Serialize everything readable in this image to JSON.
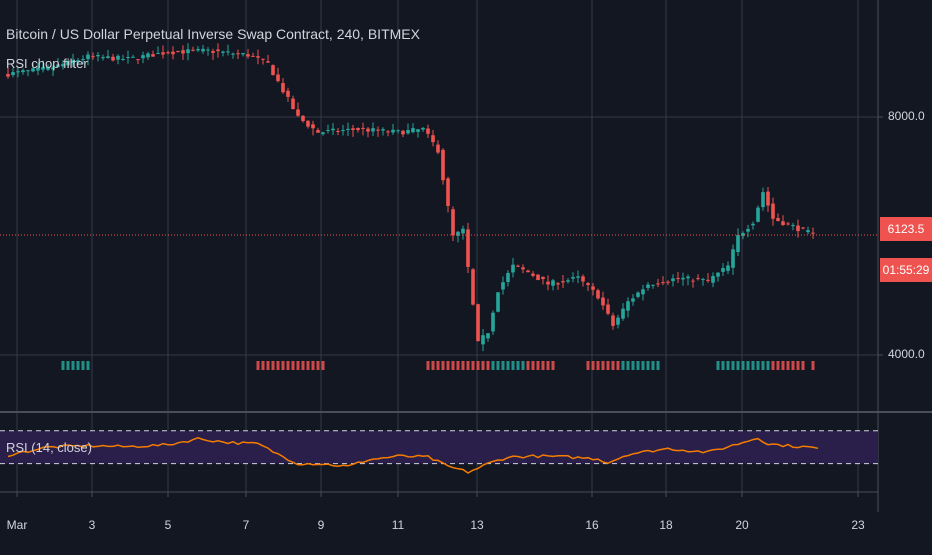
{
  "header": {
    "title": "Bitcoin / US Dollar Perpetual Inverse Swap Contract, 240, BITMEX",
    "indicator": "RSI chop filter"
  },
  "rsi_panel": {
    "label": "RSI (14, close)"
  },
  "price_axis": {
    "labels": [
      "8000.0",
      "4000.0"
    ],
    "last_price": "6123.5",
    "countdown": "01:55:29"
  },
  "time_axis": {
    "labels": [
      "Mar",
      "3",
      "5",
      "7",
      "9",
      "11",
      "13",
      "16",
      "18",
      "20",
      "23"
    ]
  },
  "colors": {
    "background": "#131722",
    "up": "#26a69a",
    "down": "#ef5350",
    "grid": "#363a45",
    "rsi_line": "#f57c00",
    "rsi_band": "#2a1f4a",
    "last_price_line": "#ef5350"
  },
  "chart_data": {
    "type": "candlestick",
    "y_range": [
      3500,
      9500
    ],
    "y_ticks": [
      4000,
      8000
    ],
    "last_price": 6123.5,
    "x_tick_labels": [
      "Mar",
      "3",
      "5",
      "7",
      "9",
      "11",
      "13",
      "16",
      "18",
      "20",
      "23"
    ],
    "waypoints": [
      {
        "i": 0,
        "price": 8830
      },
      {
        "i": 8,
        "price": 8920
      },
      {
        "i": 16,
        "price": 9120
      },
      {
        "i": 24,
        "price": 9080
      },
      {
        "i": 32,
        "price": 9200
      },
      {
        "i": 40,
        "price": 9220
      },
      {
        "i": 48,
        "price": 9150
      },
      {
        "i": 52,
        "price": 9000
      },
      {
        "i": 58,
        "price": 8100
      },
      {
        "i": 62,
        "price": 7850
      },
      {
        "i": 70,
        "price": 7900
      },
      {
        "i": 78,
        "price": 7850
      },
      {
        "i": 83,
        "price": 7900
      },
      {
        "i": 86,
        "price": 7550
      },
      {
        "i": 89,
        "price": 6100
      },
      {
        "i": 91,
        "price": 6200
      },
      {
        "i": 94,
        "price": 4300
      },
      {
        "i": 96,
        "price": 4500
      },
      {
        "i": 98,
        "price": 5200
      },
      {
        "i": 101,
        "price": 5600
      },
      {
        "i": 104,
        "price": 5500
      },
      {
        "i": 108,
        "price": 5300
      },
      {
        "i": 114,
        "price": 5400
      },
      {
        "i": 118,
        "price": 5100
      },
      {
        "i": 121,
        "price": 4600
      },
      {
        "i": 124,
        "price": 5000
      },
      {
        "i": 128,
        "price": 5300
      },
      {
        "i": 134,
        "price": 5400
      },
      {
        "i": 140,
        "price": 5350
      },
      {
        "i": 144,
        "price": 5600
      },
      {
        "i": 146,
        "price": 6100
      },
      {
        "i": 149,
        "price": 6350
      },
      {
        "i": 151,
        "price": 6850
      },
      {
        "i": 153,
        "price": 6400
      },
      {
        "i": 156,
        "price": 6300
      },
      {
        "i": 159,
        "price": 6200
      },
      {
        "i": 161,
        "price": 6123.5
      }
    ],
    "rsi": {
      "levels": [
        70,
        30
      ],
      "values": [
        {
          "i": 0,
          "v": 38
        },
        {
          "i": 8,
          "v": 55
        },
        {
          "i": 16,
          "v": 58
        },
        {
          "i": 24,
          "v": 56
        },
        {
          "i": 32,
          "v": 60
        },
        {
          "i": 38,
          "v": 73
        },
        {
          "i": 44,
          "v": 65
        },
        {
          "i": 50,
          "v": 62
        },
        {
          "i": 54,
          "v": 40
        },
        {
          "i": 58,
          "v": 20
        },
        {
          "i": 62,
          "v": 20
        },
        {
          "i": 68,
          "v": 14
        },
        {
          "i": 72,
          "v": 28
        },
        {
          "i": 78,
          "v": 36
        },
        {
          "i": 84,
          "v": 34
        },
        {
          "i": 88,
          "v": 14
        },
        {
          "i": 92,
          "v": 2
        },
        {
          "i": 94,
          "v": 10
        },
        {
          "i": 96,
          "v": 20
        },
        {
          "i": 100,
          "v": 34
        },
        {
          "i": 106,
          "v": 36
        },
        {
          "i": 112,
          "v": 34
        },
        {
          "i": 118,
          "v": 30
        },
        {
          "i": 120,
          "v": 22
        },
        {
          "i": 124,
          "v": 40
        },
        {
          "i": 132,
          "v": 52
        },
        {
          "i": 140,
          "v": 44
        },
        {
          "i": 146,
          "v": 62
        },
        {
          "i": 150,
          "v": 75
        },
        {
          "i": 152,
          "v": 62
        },
        {
          "i": 156,
          "v": 58
        },
        {
          "i": 160,
          "v": 55
        },
        {
          "i": 162,
          "v": 52
        }
      ]
    }
  }
}
